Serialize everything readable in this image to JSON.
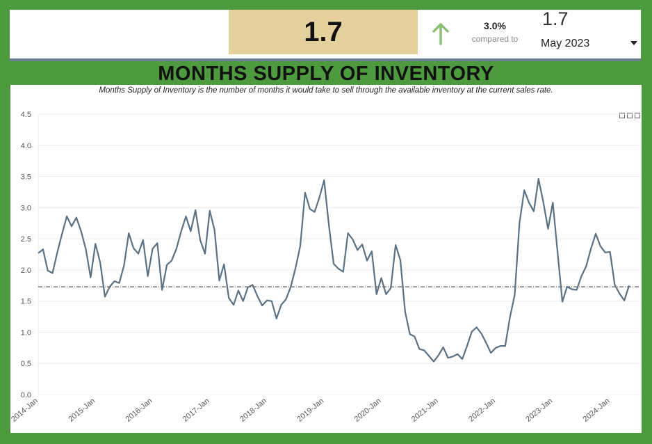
{
  "kpi": {
    "value": "1.7",
    "change_pct": "3.0%",
    "compared_to": "compared to",
    "period_value": "1.7",
    "period_selected": "May 2023",
    "arrow_icon": "arrow-up-icon",
    "caret_icon": "caret-down-icon"
  },
  "title": "MONTHS SUPPLY OF INVENTORY",
  "subtitle": "Months Supply of Inventory is the number of months it would take to sell through the available inventory at the current sales rate.",
  "toolbar": {
    "icons": [
      "download-icon",
      "copy-icon",
      "export-icon"
    ]
  },
  "colors": {
    "line": "#5a7183",
    "kpi_box": "#e5d19d",
    "background": "#4e9a3f",
    "arrow": "#8bbf73"
  },
  "chart_data": {
    "type": "line",
    "x_start": "2014-Jan",
    "x_ticks": [
      "2014-Jan",
      "2015-Jan",
      "2016-Jan",
      "2017-Jan",
      "2018-Jan",
      "2019-Jan",
      "2020-Jan",
      "2021-Jan",
      "2022-Jan",
      "2023-Jan",
      "2024-Jan"
    ],
    "ylim": [
      0,
      4.5
    ],
    "y_ticks": [
      "0.0",
      "0.5",
      "1.0",
      "1.5",
      "2.0",
      "2.5",
      "3.0",
      "3.5",
      "4.0",
      "4.5"
    ],
    "reference_line": 1.73,
    "grid": "horizontal",
    "values": [
      2.27,
      2.33,
      1.99,
      1.95,
      2.28,
      2.58,
      2.86,
      2.7,
      2.84,
      2.62,
      2.33,
      1.88,
      2.42,
      2.12,
      1.57,
      1.73,
      1.82,
      1.79,
      2.07,
      2.59,
      2.35,
      2.26,
      2.48,
      1.9,
      2.34,
      2.43,
      1.68,
      2.08,
      2.15,
      2.34,
      2.62,
      2.86,
      2.62,
      2.96,
      2.48,
      2.26,
      2.95,
      2.64,
      1.83,
      2.09,
      1.55,
      1.44,
      1.67,
      1.5,
      1.72,
      1.76,
      1.58,
      1.43,
      1.51,
      1.5,
      1.22,
      1.44,
      1.53,
      1.73,
      2.03,
      2.39,
      3.24,
      2.98,
      2.93,
      3.16,
      3.44,
      2.72,
      2.1,
      2.02,
      1.97,
      2.59,
      2.49,
      2.32,
      2.41,
      2.15,
      2.3,
      1.61,
      1.87,
      1.61,
      1.71,
      2.4,
      2.16,
      1.33,
      0.97,
      0.93,
      0.73,
      0.71,
      0.62,
      0.53,
      0.63,
      0.76,
      0.59,
      0.61,
      0.65,
      0.57,
      0.78,
      1.01,
      1.08,
      0.98,
      0.83,
      0.67,
      0.75,
      0.78,
      0.78,
      1.24,
      1.6,
      2.75,
      3.28,
      3.08,
      2.94,
      3.46,
      3.09,
      2.66,
      3.08,
      2.28,
      1.49,
      1.73,
      1.69,
      1.68,
      1.9,
      2.06,
      2.34,
      2.58,
      2.38,
      2.28,
      2.29,
      1.76,
      1.62,
      1.51,
      1.75
    ]
  }
}
